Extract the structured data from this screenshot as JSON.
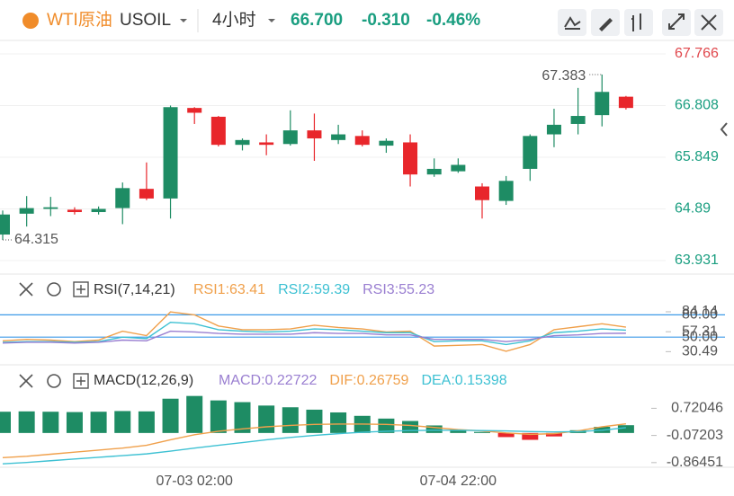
{
  "header": {
    "symbol_name": "WTI原油",
    "symbol": "USOIL",
    "interval": "4小时",
    "price": "66.700",
    "change": "-0.310",
    "change_pct": "-0.46%"
  },
  "chart_data": [
    {
      "type": "candlestick",
      "up_color": "#1e8c64",
      "down_color": "#e8262b",
      "categories": [
        null,
        null,
        null,
        null,
        null,
        null,
        null,
        null,
        "07-03 02:00",
        null,
        null,
        null,
        null,
        null,
        null,
        null,
        null,
        null,
        null,
        "07-04 22:00",
        null,
        null,
        null,
        null,
        null,
        null,
        null
      ],
      "open": [
        64.414,
        64.801,
        64.89,
        64.875,
        64.831,
        64.905,
        65.262,
        65.083,
        66.763,
        66.6,
        66.079,
        66.124,
        66.094,
        66.347,
        66.168,
        66.243,
        66.064,
        66.124,
        65.529,
        65.588,
        65.306,
        65.038,
        65.633,
        66.273,
        66.466,
        66.63,
        66.972
      ],
      "high": [
        64.86,
        65.128,
        65.113,
        64.92,
        64.935,
        65.38,
        65.752,
        66.808,
        66.778,
        66.615,
        66.198,
        66.273,
        66.719,
        66.659,
        66.451,
        66.347,
        66.198,
        66.273,
        65.827,
        65.827,
        65.366,
        65.5,
        66.273,
        66.749,
        67.135,
        67.383,
        66.986
      ],
      "low": [
        64.315,
        64.563,
        64.756,
        64.786,
        64.786,
        64.607,
        65.053,
        64.711,
        66.466,
        66.049,
        65.975,
        65.886,
        66.064,
        65.782,
        66.094,
        66.049,
        65.931,
        65.306,
        65.485,
        65.559,
        64.711,
        64.964,
        65.41,
        66.035,
        66.273,
        66.421,
        66.734
      ],
      "close": [
        64.786,
        64.905,
        64.92,
        64.831,
        64.89,
        65.276,
        65.083,
        66.778,
        66.674,
        66.079,
        66.168,
        66.079,
        66.347,
        66.198,
        66.273,
        66.079,
        66.154,
        65.529,
        65.633,
        65.707,
        65.053,
        65.41,
        66.243,
        66.451,
        66.615,
        67.061,
        66.763
      ],
      "ylim": [
        63.931,
        67.766
      ],
      "yticks": [
        67.766,
        66.808,
        65.849,
        64.89,
        63.931
      ],
      "annotations": [
        {
          "text": "67.383",
          "value": 67.383
        },
        {
          "text": "64.315",
          "value": 64.315
        }
      ]
    },
    {
      "type": "line",
      "title": "RSI(7,14,21)",
      "ylim": [
        20,
        95
      ],
      "yticks": [
        84.14,
        57.31,
        30.49
      ],
      "reference_lines": [
        {
          "value": 80,
          "label": "80.00"
        },
        {
          "value": 50,
          "label": "50.00"
        }
      ],
      "reference_color": "#3d9ae8",
      "series": [
        {
          "name": "RSI1:63.41",
          "color": "#f0a04b",
          "values": [
            45,
            47,
            46,
            44,
            46,
            58,
            52,
            84,
            80,
            65,
            60,
            60,
            61,
            66,
            63,
            61,
            57,
            58,
            38,
            39,
            40,
            31,
            40,
            60,
            64,
            68,
            63.41
          ]
        },
        {
          "name": "RSI2:59.39",
          "color": "#3ec1d3",
          "values": [
            43,
            44,
            44,
            43,
            44,
            50,
            48,
            70,
            68,
            60,
            58,
            57,
            58,
            61,
            60,
            58,
            56,
            56,
            44,
            45,
            45,
            40,
            45,
            56,
            58,
            61,
            59.39
          ]
        },
        {
          "name": "RSI3:55.23",
          "color": "#9a7fd1",
          "values": [
            42,
            43,
            43,
            42,
            43,
            46,
            45,
            58,
            57,
            55,
            54,
            54,
            54,
            56,
            55,
            55,
            53,
            53,
            47,
            47,
            47,
            44,
            47,
            52,
            53,
            55,
            55.23
          ]
        }
      ]
    },
    {
      "type": "macd",
      "title": "MACD(12,26,9)",
      "ylim": [
        -1.0,
        1.15
      ],
      "yticks": [
        0.72046,
        -0.07203,
        -0.86451
      ],
      "series": [
        {
          "name": "MACD:0.22722",
          "color": "#9a7fd1",
          "up_color": "#1e8c64",
          "down_color": "#e8262b",
          "values": [
            0.62,
            0.63,
            0.62,
            0.61,
            0.62,
            0.64,
            0.63,
            1.0,
            1.08,
            0.95,
            0.9,
            0.8,
            0.75,
            0.68,
            0.6,
            0.5,
            0.42,
            0.35,
            0.22,
            0.1,
            0.03,
            -0.12,
            -0.2,
            -0.1,
            0.08,
            0.18,
            0.22722
          ]
        },
        {
          "name": "DIF:0.26759",
          "color": "#f0a04b",
          "values": [
            -0.72,
            -0.68,
            -0.62,
            -0.56,
            -0.5,
            -0.44,
            -0.36,
            -0.2,
            -0.05,
            0.05,
            0.12,
            0.18,
            0.22,
            0.25,
            0.26,
            0.26,
            0.25,
            0.22,
            0.16,
            0.1,
            0.06,
            0.0,
            -0.04,
            -0.02,
            0.06,
            0.18,
            0.26759
          ]
        },
        {
          "name": "DEA:0.15398",
          "color": "#3ec1d3",
          "values": [
            -0.9,
            -0.86,
            -0.81,
            -0.76,
            -0.71,
            -0.66,
            -0.61,
            -0.53,
            -0.44,
            -0.36,
            -0.28,
            -0.2,
            -0.13,
            -0.07,
            -0.02,
            0.02,
            0.05,
            0.07,
            0.08,
            0.08,
            0.07,
            0.06,
            0.04,
            0.03,
            0.04,
            0.08,
            0.15398
          ]
        }
      ]
    }
  ]
}
